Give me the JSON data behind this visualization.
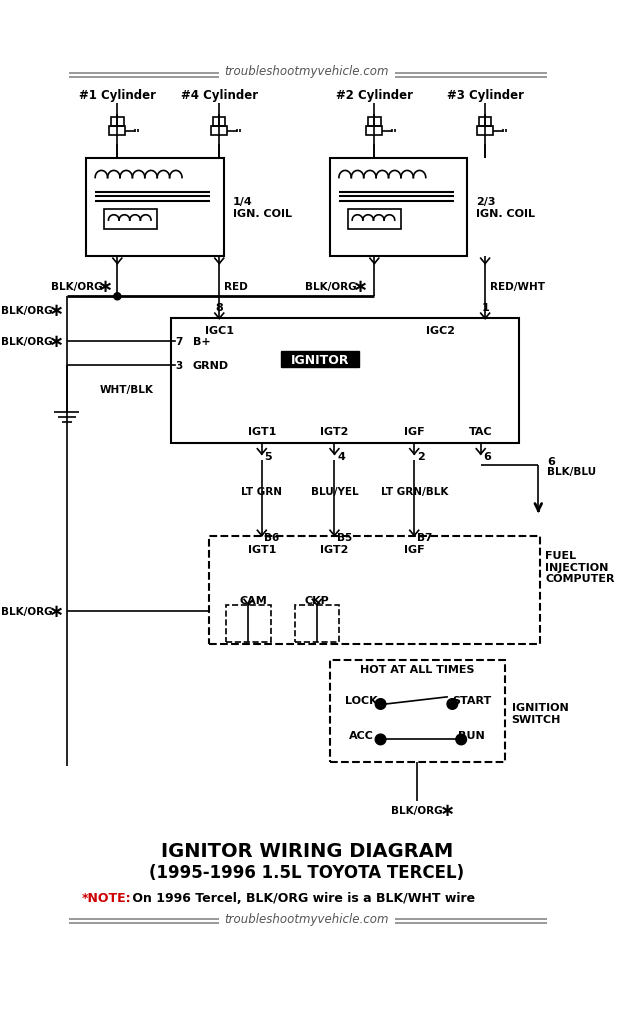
{
  "title_top": "troubleshootmyvehicle.com",
  "title_bottom1": "IGNITOR WIRING DIAGRAM",
  "title_bottom2": "(1995-1996 1.5L TOYOTA TERCEL)",
  "note_red": "*NOTE:",
  "note_black": " On 1996 Tercel, BLK/ORG wire is a BLK/WHT wire",
  "cylinders": [
    "#1 Cylinder",
    "#4 Cylinder",
    "#2 Cylinder",
    "#3 Cylinder"
  ],
  "bg_color": "#ffffff",
  "text_color": "#000000",
  "red_color": "#cc0000",
  "gray_color": "#888888"
}
